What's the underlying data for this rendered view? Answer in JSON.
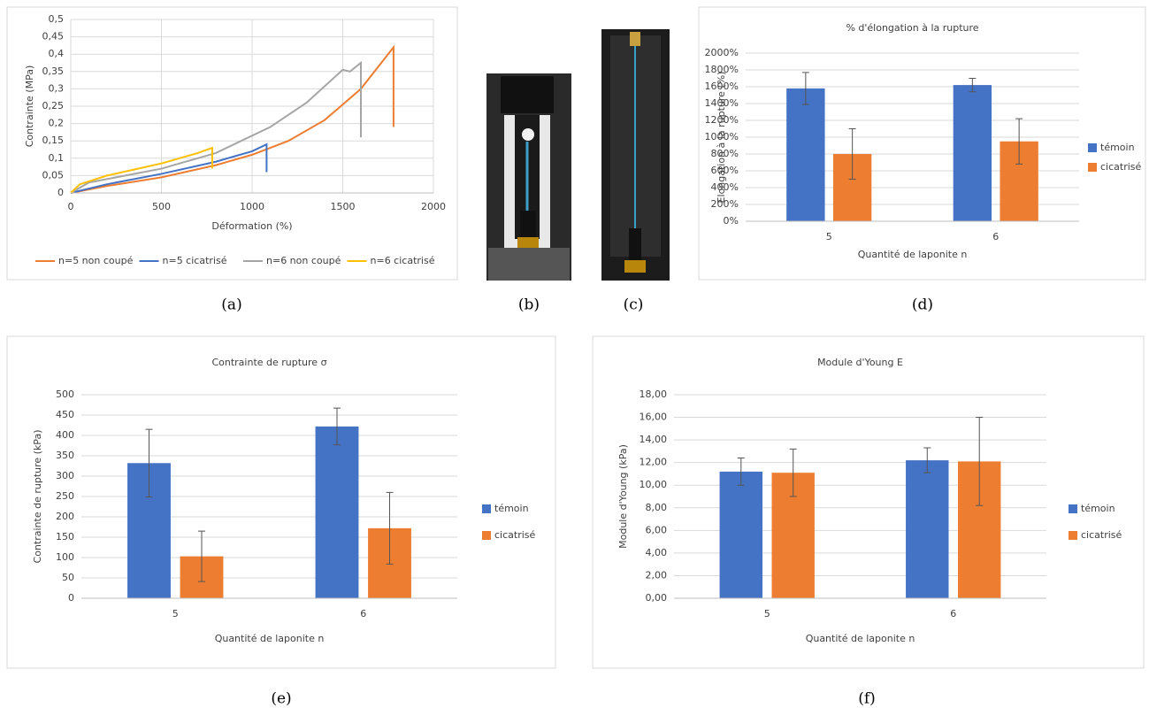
{
  "captions": [
    "(a)",
    "(b)",
    "(c)",
    "(d)",
    "(e)",
    "(f)"
  ],
  "chart_data": [
    {
      "type": "line",
      "xlabel": "Déformation (%)",
      "ylabel": "Contrainte (MPa)",
      "xlim": [
        0,
        2000
      ],
      "xticks": [
        0,
        500,
        1000,
        1500,
        2000
      ],
      "ylim": [
        0,
        0.5
      ],
      "yticks": [
        0,
        {
          "value": 0.05,
          "label": "0,05"
        },
        {
          "value": 0.1,
          "label": "0,1"
        },
        {
          "value": 0.15,
          "label": "0,15"
        },
        {
          "value": 0.2,
          "label": "0,2"
        },
        {
          "value": 0.25,
          "label": "0,25"
        },
        {
          "value": 0.3,
          "label": "0,3"
        },
        {
          "value": 0.35,
          "label": "0,35"
        },
        {
          "value": 0.4,
          "label": "0,4"
        },
        {
          "value": 0.45,
          "label": "0,45"
        },
        {
          "value": 0.5,
          "label": "0,5"
        }
      ],
      "grid": true,
      "legend": "bottom",
      "series": [
        {
          "name": "n=5 non coupé",
          "color": "#ed7d31",
          "x": [
            0,
            200,
            500,
            800,
            1000,
            1200,
            1400,
            1600,
            1780,
            1780
          ],
          "values": [
            0,
            0.02,
            0.045,
            0.08,
            0.11,
            0.15,
            0.21,
            0.3,
            0.42,
            0.19
          ]
        },
        {
          "name": "n=5 cicatrisé",
          "color": "#4472c4",
          "x": [
            0,
            200,
            500,
            800,
            1000,
            1080,
            1080
          ],
          "values": [
            0,
            0.025,
            0.055,
            0.09,
            0.12,
            0.14,
            0.06
          ]
        },
        {
          "name": "n=6 non coupé",
          "color": "#a5a5a5",
          "x": [
            0,
            100,
            500,
            800,
            1100,
            1300,
            1500,
            1540,
            1600,
            1600
          ],
          "values": [
            0,
            0.03,
            0.07,
            0.115,
            0.19,
            0.26,
            0.355,
            0.35,
            0.375,
            0.16
          ]
        },
        {
          "name": "n=6 cicatrisé",
          "color": "#ffc000",
          "x": [
            0,
            50,
            200,
            500,
            700,
            780,
            780
          ],
          "values": [
            0,
            0.025,
            0.05,
            0.085,
            0.115,
            0.13,
            0.07
          ]
        }
      ]
    },
    {
      "type": "bar",
      "title": "% d'élongation à la rupture",
      "xlabel": "Quantité de laponite n",
      "ylabel": "Elongation à la rupture (%)",
      "categories": [
        "5",
        "6"
      ],
      "ylim": [
        0,
        2000
      ],
      "yticks": [
        {
          "value": 0,
          "label": "0%"
        },
        {
          "value": 200,
          "label": "200%"
        },
        {
          "value": 400,
          "label": "400%"
        },
        {
          "value": 600,
          "label": "600%"
        },
        {
          "value": 800,
          "label": "800%"
        },
        {
          "value": 1000,
          "label": "1000%"
        },
        {
          "value": 1200,
          "label": "1200%"
        },
        {
          "value": 1400,
          "label": "1400%"
        },
        {
          "value": 1600,
          "label": "1600%"
        },
        {
          "value": 1800,
          "label": "1800%"
        },
        {
          "value": 2000,
          "label": "2000%"
        }
      ],
      "grid": true,
      "legend": "right",
      "series": [
        {
          "name": "témoin",
          "color": "#4472c4",
          "values": [
            1580,
            1620
          ],
          "errors": [
            190,
            80
          ]
        },
        {
          "name": "cicatrisé",
          "color": "#ed7d31",
          "values": [
            800,
            950
          ],
          "errors": [
            300,
            270
          ]
        }
      ]
    },
    {
      "type": "bar",
      "title": "Contrainte de rupture σ",
      "xlabel": "Quantité de laponite n",
      "ylabel": "Contrainte de rupture (kPa)",
      "categories": [
        "5",
        "6"
      ],
      "ylim": [
        0,
        500
      ],
      "yticks": [
        0,
        50,
        100,
        150,
        200,
        250,
        300,
        350,
        400,
        450,
        500
      ],
      "grid": true,
      "legend": "right",
      "series": [
        {
          "name": "témoin",
          "color": "#4472c4",
          "values": [
            332,
            422
          ],
          "errors": [
            83,
            45
          ]
        },
        {
          "name": "cicatrisé",
          "color": "#ed7d31",
          "values": [
            103,
            172
          ],
          "errors": [
            62,
            88
          ]
        }
      ]
    },
    {
      "type": "bar",
      "title": "Module d'Young E",
      "xlabel": "Quantité de laponite n",
      "ylabel": "Module d'Young (kPa)",
      "categories": [
        "5",
        "6"
      ],
      "ylim": [
        0,
        18
      ],
      "yticks": [
        {
          "value": 0,
          "label": "0,00"
        },
        {
          "value": 2,
          "label": "2,00"
        },
        {
          "value": 4,
          "label": "4,00"
        },
        {
          "value": 6,
          "label": "6,00"
        },
        {
          "value": 8,
          "label": "8,00"
        },
        {
          "value": 10,
          "label": "10,00"
        },
        {
          "value": 12,
          "label": "12,00"
        },
        {
          "value": 14,
          "label": "14,00"
        },
        {
          "value": 16,
          "label": "16,00"
        },
        {
          "value": 18,
          "label": "18,00"
        }
      ],
      "grid": true,
      "legend": "right",
      "series": [
        {
          "name": "témoin",
          "color": "#4472c4",
          "values": [
            11.2,
            12.2
          ],
          "errors": [
            1.2,
            1.1
          ]
        },
        {
          "name": "cicatrisé",
          "color": "#ed7d31",
          "values": [
            11.1,
            12.1
          ],
          "errors": [
            2.1,
            3.9
          ]
        }
      ]
    }
  ]
}
